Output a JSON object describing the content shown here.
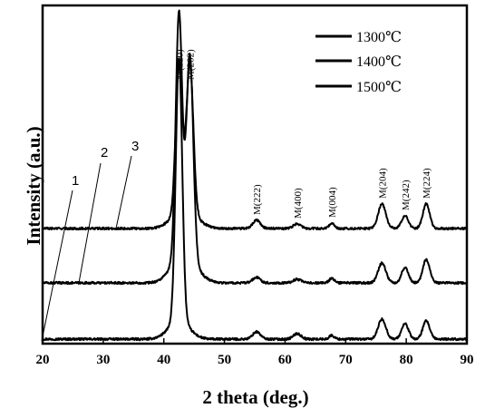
{
  "chart_data": {
    "type": "line",
    "title": "",
    "xlabel": "2 theta (deg.)",
    "ylabel": "Intensity (a.u.)",
    "xlim": [
      20,
      90
    ],
    "xticks": [
      "20",
      "30",
      "40",
      "50",
      "60",
      "70",
      "80",
      "90"
    ],
    "legend": {
      "placement": "top-right",
      "entries": [
        "1300℃",
        "1400℃",
        "1500℃"
      ]
    },
    "curve_numbers": [
      "1",
      "2",
      "3"
    ],
    "peak_labels": [
      {
        "text": "M(220)",
        "x": 42.5
      },
      {
        "text": "M(202)",
        "x": 44.3
      },
      {
        "text": "M(222)",
        "x": 55.3
      },
      {
        "text": "M(400)",
        "x": 62.0
      },
      {
        "text": "M(004)",
        "x": 67.7
      },
      {
        "text": "M(204)",
        "x": 76.0
      },
      {
        "text": "M(242)",
        "x": 79.8
      },
      {
        "text": "M(224)",
        "x": 83.3
      }
    ],
    "peaks": [
      {
        "x": 42.5,
        "width": 0.75
      },
      {
        "x": 44.3,
        "width": 0.8
      },
      {
        "x": 55.3,
        "width": 0.9
      },
      {
        "x": 62.0,
        "width": 0.9
      },
      {
        "x": 67.7,
        "width": 0.6
      },
      {
        "x": 76.0,
        "width": 0.9
      },
      {
        "x": 79.8,
        "width": 0.8
      },
      {
        "x": 83.3,
        "width": 0.8
      }
    ],
    "series": [
      {
        "color": "#000000",
        "baseline": 0,
        "peak_heights": [
          290,
          0,
          8,
          6,
          4,
          22,
          17,
          20
        ]
      },
      {
        "color": "#000000",
        "baseline": 62,
        "peak_heights": [
          270,
          225,
          6,
          4,
          5,
          22,
          17,
          26
        ]
      },
      {
        "color": "#000000",
        "baseline": 122,
        "peak_heights": [
          165,
          165,
          9,
          5,
          6,
          27,
          14,
          27
        ]
      }
    ]
  }
}
